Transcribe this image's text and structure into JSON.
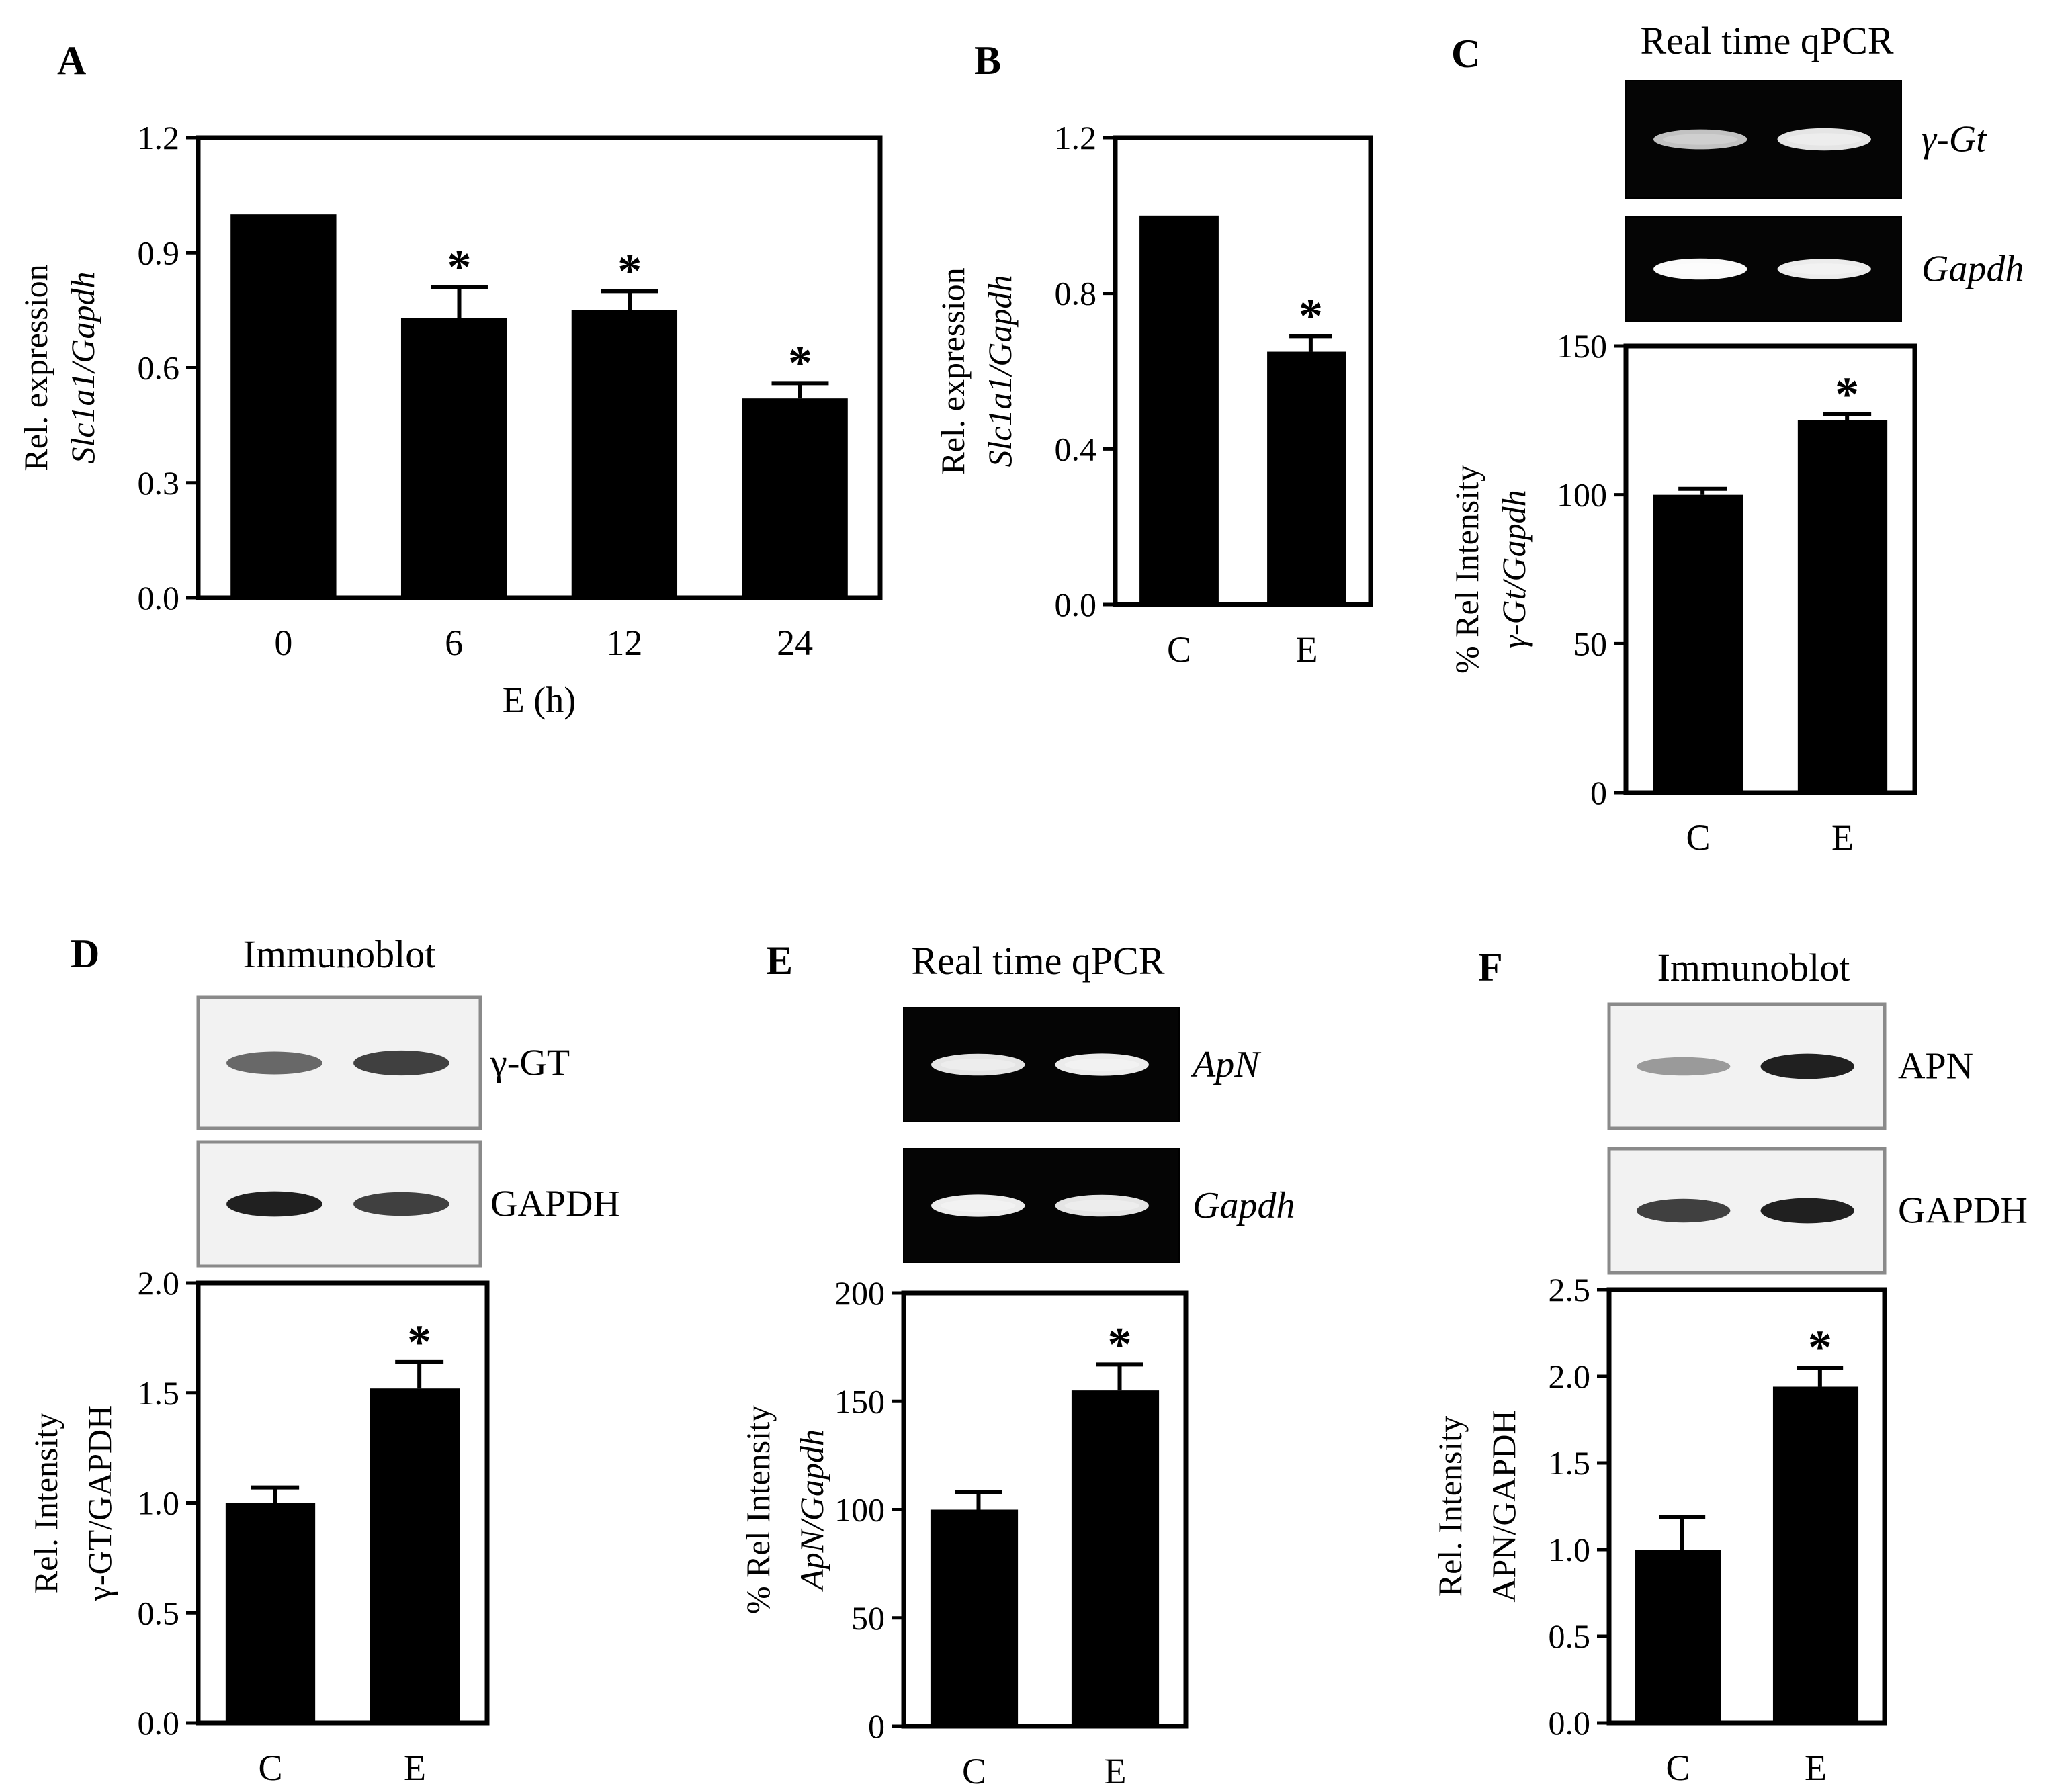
{
  "chart_data": [
    {
      "panel": "A",
      "type": "bar",
      "categories": [
        "0",
        "6",
        "12",
        "24"
      ],
      "values": [
        1.0,
        0.73,
        0.75,
        0.52
      ],
      "errors": [
        0,
        0.08,
        0.05,
        0.04
      ],
      "significant": [
        false,
        true,
        true,
        true
      ],
      "ylabel_lines": [
        "Rel. expression",
        "Slc1a1/Gapdh"
      ],
      "ylabel_italic": [
        false,
        true
      ],
      "xlabel": "E (h)",
      "ylim": [
        0,
        1.2
      ],
      "yticks": [
        "0.0",
        "0.3",
        "0.6",
        "0.9",
        "1.2"
      ],
      "bar_color": "#000000"
    },
    {
      "panel": "B",
      "type": "bar",
      "categories": [
        "C",
        "E"
      ],
      "values": [
        1.0,
        0.65
      ],
      "errors": [
        0,
        0.04
      ],
      "significant": [
        false,
        true
      ],
      "ylabel_lines": [
        "Rel. expression",
        "Slc1a1/Gapdh"
      ],
      "ylabel_italic": [
        false,
        true
      ],
      "xlabel": "",
      "ylim": [
        0,
        1.2
      ],
      "yticks": [
        "0.0",
        "0.4",
        "0.8",
        "1.2"
      ],
      "bar_color": "#000000"
    },
    {
      "panel": "C",
      "type": "bar",
      "method": "Real time qPCR",
      "gels": [
        {
          "label": "γ-Gt",
          "italic": true,
          "style": "dark",
          "bands": [
            0.6,
            0.85
          ]
        },
        {
          "label": "Gapdh",
          "italic": true,
          "style": "dark",
          "bands": [
            1.0,
            0.9
          ]
        }
      ],
      "categories": [
        "C",
        "E"
      ],
      "values": [
        100,
        125
      ],
      "errors": [
        2,
        2
      ],
      "significant": [
        false,
        true
      ],
      "ylabel_lines": [
        "% Rel Intensity",
        "γ-Gt/Gapdh"
      ],
      "ylabel_italic": [
        false,
        true
      ],
      "xlabel": "",
      "ylim": [
        0,
        150
      ],
      "yticks": [
        "0",
        "50",
        "100",
        "150"
      ],
      "bar_color": "#000000"
    },
    {
      "panel": "D",
      "type": "bar",
      "method": "Immunoblot",
      "gels": [
        {
          "label": "γ-GT",
          "italic": false,
          "style": "light",
          "bands": [
            0.65,
            0.85
          ]
        },
        {
          "label": "GAPDH",
          "italic": false,
          "style": "light",
          "bands": [
            1.0,
            0.85
          ]
        }
      ],
      "categories": [
        "C",
        "E"
      ],
      "values": [
        1.0,
        1.52
      ],
      "errors": [
        0.07,
        0.12
      ],
      "significant": [
        false,
        true
      ],
      "ylabel_lines": [
        "Rel. Intensity",
        "γ-GT/GAPDH"
      ],
      "ylabel_italic": [
        false,
        false
      ],
      "xlabel": "",
      "ylim": [
        0,
        2.0
      ],
      "yticks": [
        "0.0",
        "0.5",
        "1.0",
        "1.5",
        "2.0"
      ],
      "bar_color": "#000000"
    },
    {
      "panel": "E",
      "type": "bar",
      "method": "Real time qPCR",
      "gels": [
        {
          "label": "ApN",
          "italic": true,
          "style": "dark",
          "bands": [
            0.85,
            0.9
          ]
        },
        {
          "label": "Gapdh",
          "italic": true,
          "style": "dark",
          "bands": [
            0.9,
            0.85
          ]
        }
      ],
      "categories": [
        "C",
        "E"
      ],
      "values": [
        100,
        155
      ],
      "errors": [
        8,
        12
      ],
      "significant": [
        false,
        true
      ],
      "ylabel_lines": [
        "% Rel Intensity",
        "ApN/Gapdh"
      ],
      "ylabel_italic": [
        false,
        true
      ],
      "xlabel": "",
      "ylim": [
        0,
        200
      ],
      "yticks": [
        "0",
        "50",
        "100",
        "150",
        "200"
      ],
      "bar_color": "#000000"
    },
    {
      "panel": "F",
      "type": "bar",
      "method": "Immunoblot",
      "gels": [
        {
          "label": "APN",
          "italic": false,
          "style": "light",
          "bands": [
            0.35,
            1.0
          ]
        },
        {
          "label": "GAPDH",
          "italic": false,
          "style": "light",
          "bands": [
            0.85,
            1.0
          ]
        }
      ],
      "categories": [
        "C",
        "E"
      ],
      "values": [
        1.0,
        1.94
      ],
      "errors": [
        0.19,
        0.11
      ],
      "significant": [
        false,
        true
      ],
      "ylabel_lines": [
        "Rel. Intensity",
        "APN/GAPDH"
      ],
      "ylabel_italic": [
        false,
        false
      ],
      "xlabel": "",
      "ylim": [
        0,
        2.5
      ],
      "yticks": [
        "0.0",
        "0.5",
        "1.0",
        "1.5",
        "2.0",
        "2.5"
      ],
      "bar_color": "#000000"
    }
  ]
}
